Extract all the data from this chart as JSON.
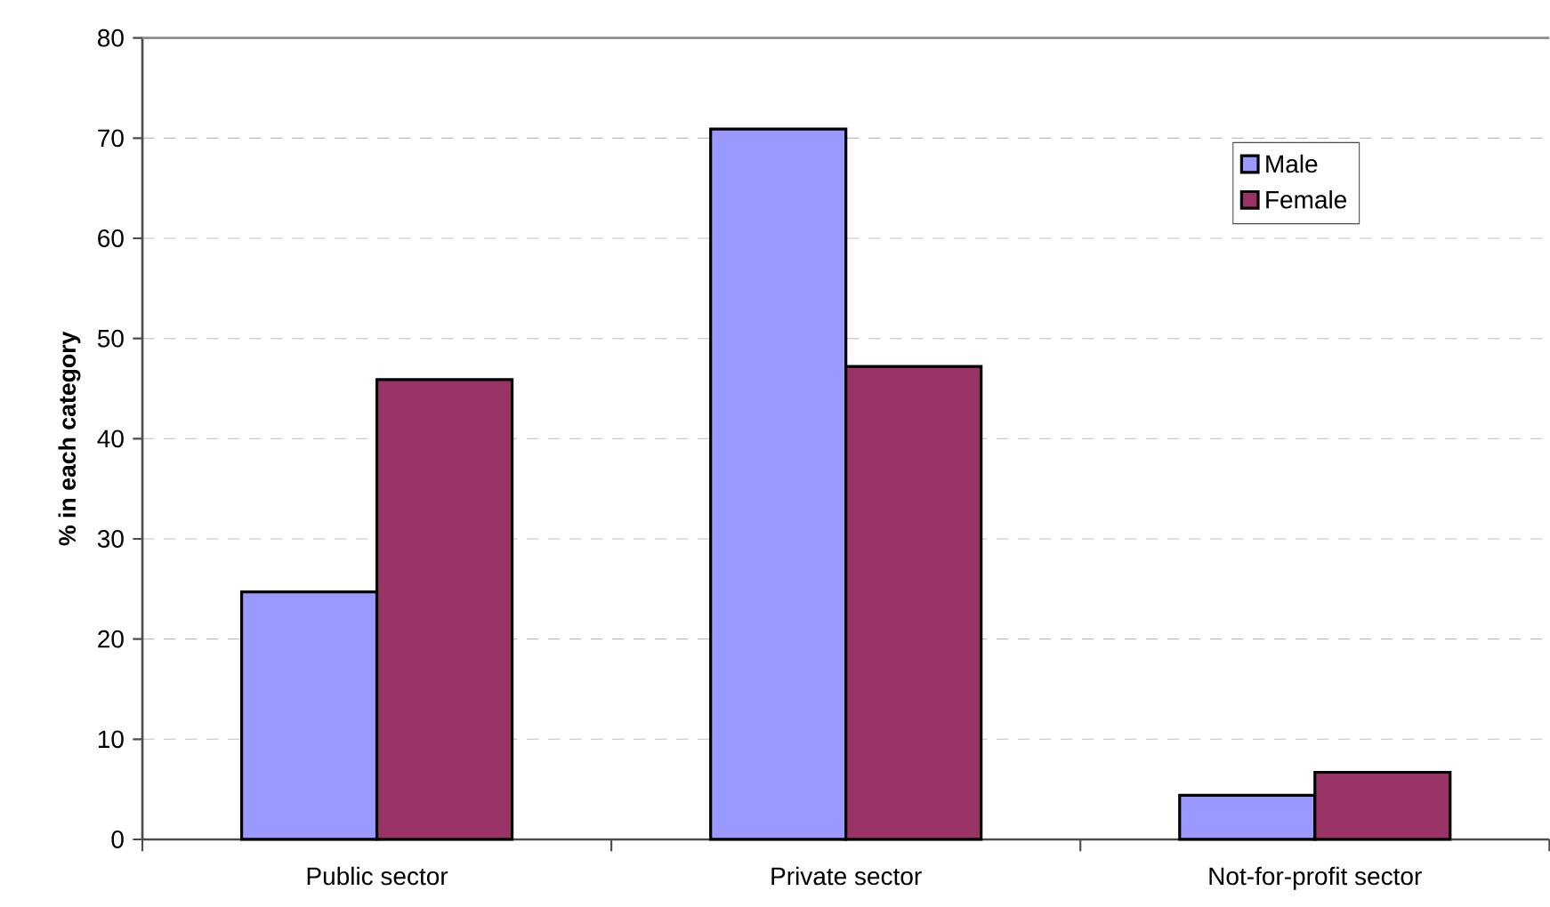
{
  "chart_data": {
    "type": "bar",
    "ylabel": "% in each category",
    "categories": [
      "Public sector",
      "Private sector",
      "Not-for-profit sector"
    ],
    "series": [
      {
        "name": "Male",
        "color": "#9999ff",
        "values": [
          24.7,
          70.9,
          4.4
        ]
      },
      {
        "name": "Female",
        "color": "#993366",
        "values": [
          45.9,
          47.2,
          6.7
        ]
      }
    ],
    "ylim": [
      0,
      80
    ],
    "yticks": [
      0,
      10,
      20,
      30,
      40,
      50,
      60,
      70,
      80
    ],
    "grid": "y",
    "legend": "top right"
  }
}
